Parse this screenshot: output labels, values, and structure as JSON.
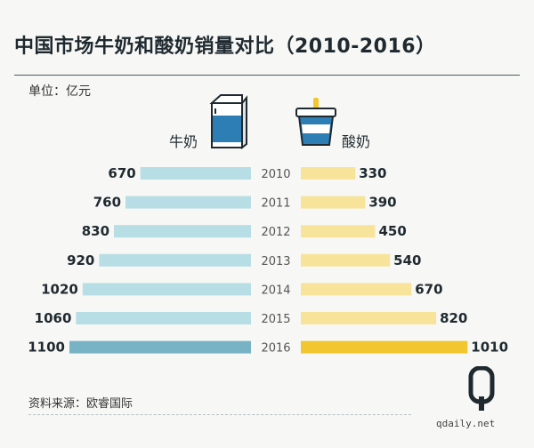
{
  "title": "中国市场牛奶和酸奶销量对比（2010-2016）",
  "unit_note": "单位：亿元",
  "source": "资料来源：欧睿国际",
  "watermark": "qdaily.net",
  "colors": {
    "milk": "#b7dde5",
    "milk_highlight": "#78b3c5",
    "yogurt": "#f7e49a",
    "yogurt_highlight": "#f1c62e",
    "year_text": "#555555",
    "value_text": "#1f2a30"
  },
  "icons": {
    "left": "milk-carton-icon",
    "right": "yogurt-cup-icon"
  },
  "chart_data": {
    "type": "bar",
    "orientation": "horizontal-diverging",
    "categories": [
      "2010",
      "2011",
      "2012",
      "2013",
      "2014",
      "2015",
      "2016"
    ],
    "series": [
      {
        "name": "牛奶",
        "values": [
          670,
          760,
          830,
          920,
          1020,
          1060,
          1100
        ]
      },
      {
        "name": "酸奶",
        "values": [
          330,
          390,
          450,
          540,
          670,
          820,
          1010
        ]
      }
    ],
    "highlight_category": "2016"
  }
}
